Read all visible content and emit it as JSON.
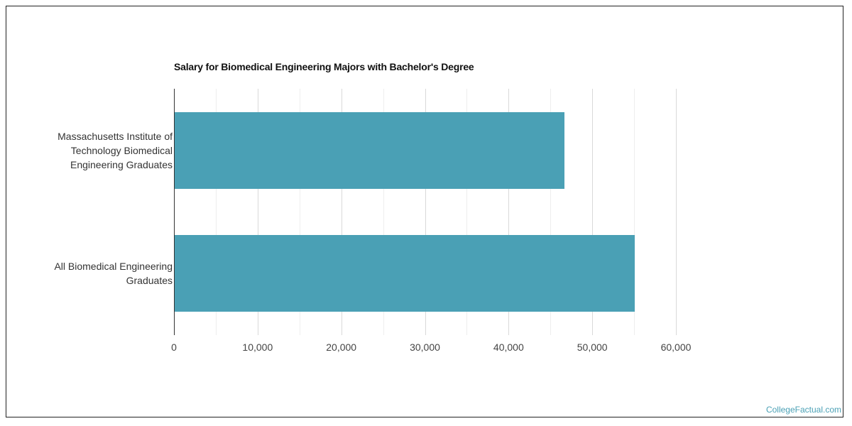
{
  "chart_data": {
    "type": "bar",
    "orientation": "horizontal",
    "title": "Salary for Biomedical Engineering Majors with Bachelor's Degree",
    "xlabel": "",
    "ylabel": "",
    "categories": [
      "Massachusetts Institute of Technology Biomedical Engineering Graduates",
      "All Biomedical Engineering Graduates"
    ],
    "category_lines": [
      [
        "Massachusetts Institute of",
        "Technology Biomedical",
        "Engineering Graduates"
      ],
      [
        "All Biomedical Engineering",
        "Graduates"
      ]
    ],
    "values": [
      46700,
      55100
    ],
    "xlim": [
      0,
      60000
    ],
    "x_ticks": [
      "0",
      "10,000",
      "20,000",
      "30,000",
      "40,000",
      "50,000",
      "60,000"
    ],
    "x_tick_values": [
      0,
      10000,
      20000,
      30000,
      40000,
      50000,
      60000
    ],
    "grid": true,
    "legend": "none",
    "bar_color": "#4aa0b5"
  },
  "watermark": "CollegeFactual.com"
}
